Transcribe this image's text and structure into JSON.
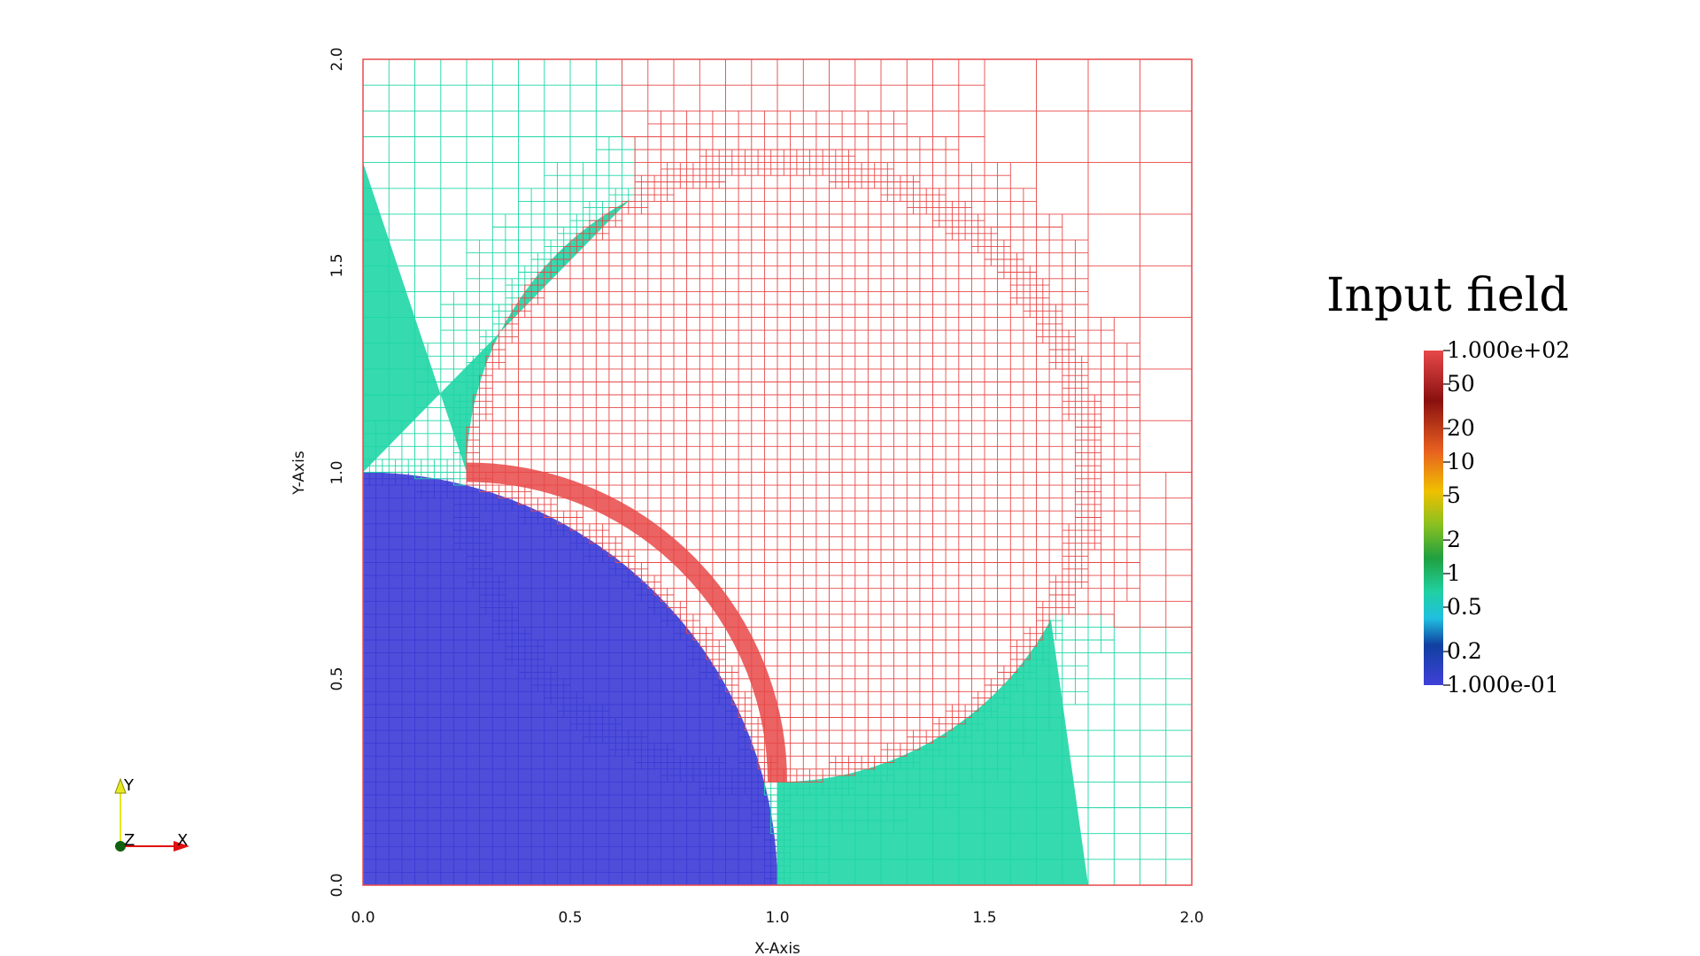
{
  "chart_data": {
    "type": "heatmap",
    "title": "",
    "xlabel": "X-Axis",
    "ylabel": "Y-Axis",
    "xlim": [
      0.0,
      2.0
    ],
    "ylim": [
      0.0,
      2.0
    ],
    "x_ticks": [
      "0.0",
      "0.5",
      "1.0",
      "1.5",
      "2.0"
    ],
    "y_ticks": [
      "0.0",
      "0.5",
      "1.0",
      "1.5",
      "2.0"
    ],
    "grid": false,
    "mesh": "adaptively refined quadtree (AMR) mesh, cells drawn as wireframe",
    "value_scale": "log",
    "regions": [
      {
        "region": "lower-left quarter disc centred at (0,0), radius 1.0",
        "value": 0.1,
        "color": "#3b3bd6"
      },
      {
        "region": "upper-left lens between the y-axis and the arc centred at (1.0,1.0)",
        "value": 1,
        "color": "#1fd6a6"
      },
      {
        "region": "lower-right lens between the x-axis and the arc centred at (1.0,1.0)",
        "value": 1,
        "color": "#1fd6a6"
      },
      {
        "region": "remaining domain",
        "value": 100,
        "color": "#e84848"
      }
    ],
    "legend": {
      "title": "Input field",
      "position": "right",
      "min_label": "1.000e-01",
      "max_label": "1.000e+02",
      "labels": [
        "1.000e+02",
        "50",
        "20",
        "10",
        "5",
        "2",
        "1",
        "0.5",
        "0.2",
        "1.000e-01"
      ],
      "values": [
        100,
        50,
        20,
        10,
        5,
        2,
        1,
        0.5,
        0.2,
        0.1
      ],
      "range": [
        0.1,
        100
      ]
    }
  },
  "colors": {
    "low": "#3b3bd6",
    "mid": "#1fd6a6",
    "high": "#e84848",
    "text": "#111111"
  },
  "orientation_axes": {
    "labels": {
      "y": "Y",
      "z": "Z",
      "x": "X"
    },
    "colors": {
      "x": "#e01010",
      "y": "#e8e820",
      "z": "#106010"
    }
  }
}
